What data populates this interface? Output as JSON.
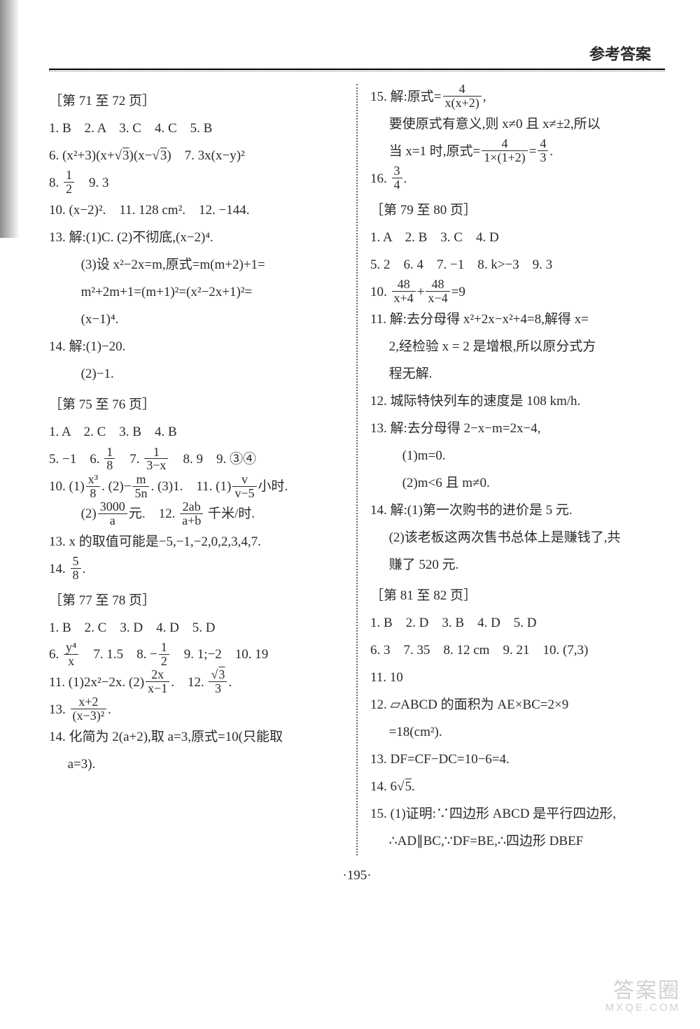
{
  "header": {
    "title": "参考答案"
  },
  "page_number": "·195·",
  "watermark": {
    "line1": "答案圈",
    "line2": "MXQE.COM"
  },
  "left": {
    "sec1_head": "［第 71 至 72 页］",
    "s1_l1": "1. B　2. A　3. C　4. C　5. B",
    "s1_l2a": "6. (x²+3)(x+",
    "s1_l2b": ")(x−",
    "s1_l2c": ")　7. 3x(x−y)²",
    "s1_l3a": "8. ",
    "s1_l3b": "　9. 3",
    "s1_l4": "10. (x−2)².　11. 128 cm².　12. −144.",
    "s1_l5": "13. 解:(1)C. (2)不彻底,(x−2)⁴.",
    "s1_l6": "(3)设 x²−2x=m,原式=m(m+2)+1=",
    "s1_l7": "m²+2m+1=(m+1)²=(x²−2x+1)²=",
    "s1_l8": "(x−1)⁴.",
    "s1_l9": "14. 解:(1)−20.",
    "s1_l10": "(2)−1.",
    "sec2_head": "［第 75 至 76 页］",
    "s2_l1": "1. A　2. C　3. B　4. B",
    "s2_l2a": "5. −1　6. ",
    "s2_l2b": "　7. ",
    "s2_l2c": "　8. 9　9. ③④",
    "s2_l3a": "10. (1)",
    "s2_l3b": ". (2)−",
    "s2_l3c": ". (3)1.　11. (1)",
    "s2_l3d": "小时.",
    "s2_l4a": "(2)",
    "s2_l4b": "元.　12. ",
    "s2_l4c": " 千米/时.",
    "s2_l5": "13. x 的取值可能是−5,−1,−2,0,2,3,4,7.",
    "s2_l6a": "14. ",
    "s2_l6b": ".",
    "sec3_head": "［第 77 至 78 页］",
    "s3_l1": "1. B　2. C　3. D　4. D　5. D",
    "s3_l2a": "6. ",
    "s3_l2b": "　7. 1.5　8. −",
    "s3_l2c": "　9. 1;−2　10. 19",
    "s3_l3a": "11. (1)2x²−2x. (2)",
    "s3_l3b": ".　12. ",
    "s3_l3c": ".",
    "s3_l4a": "13. ",
    "s3_l4b": ".",
    "s3_l5": "14. 化简为 2(a+2),取 a=3,原式=10(只能取",
    "s3_l6": "a=3).",
    "frac_1_2": {
      "n": "1",
      "d": "2"
    },
    "frac_1_8": {
      "n": "1",
      "d": "8"
    },
    "frac_1_3mx": {
      "n": "1",
      "d": "3−x"
    },
    "frac_x3_8": {
      "n": "x³",
      "d": "8"
    },
    "frac_m_5n": {
      "n": "m",
      "d": "5n"
    },
    "frac_v_vm5": {
      "n": "v",
      "d": "v−5"
    },
    "frac_3000_a": {
      "n": "3000",
      "d": "a"
    },
    "frac_2ab_apb": {
      "n": "2ab",
      "d": "a+b"
    },
    "frac_5_8": {
      "n": "5",
      "d": "8"
    },
    "frac_y4_x": {
      "n": "y⁴",
      "d": "x"
    },
    "frac_2x_xm1": {
      "n": "2x",
      "d": "x−1"
    },
    "frac_s3_3": {
      "n_pre": "",
      "n_root": "3",
      "d": "3"
    },
    "frac_xp2_xm3sq": {
      "n": "x+2",
      "d": "(x−3)²"
    },
    "sqrt3": "3"
  },
  "right": {
    "r1a": "15. 解:原式=",
    "r1b": ",",
    "r2": "要使原式有意义,则 x≠0 且 x≠±2,所以",
    "r3a": "当 x=1 时,原式=",
    "r3b": "=",
    "r3c": ".",
    "r4a": "16. ",
    "r4b": ".",
    "sec4_head": "［第 79 至 80 页］",
    "s4_l1": "1. A　2. B　3. C　4. D",
    "s4_l2": "5. 2　6. 4　7. −1　8. k>−3　9. 3",
    "s4_l3a": "10. ",
    "s4_l3b": "+",
    "s4_l3c": "=9",
    "s4_l4": "11. 解:去分母得 x²+2x−x²+4=8,解得 x=",
    "s4_l5": "2,经检验 x = 2 是增根,所以原分式方",
    "s4_l6": "程无解.",
    "s4_l7": "12. 城际特快列车的速度是 108 km/h.",
    "s4_l8": "13. 解:去分母得 2−x−m=2x−4,",
    "s4_l9": "(1)m=0.",
    "s4_l10": "(2)m<6 且 m≠0.",
    "s4_l11": "14. 解:(1)第一次购书的进价是 5 元.",
    "s4_l12": "(2)该老板这两次售书总体上是赚钱了,共",
    "s4_l13": "赚了 520 元.",
    "sec5_head": "［第 81 至 82 页］",
    "s5_l1": "1. B　2. D　3. B　4. D　5. D",
    "s5_l2": "6. 3　7. 35　8. 12 cm　9. 21　10. (7,3)",
    "s5_l3": "11. 10",
    "s5_l4": "12. ▱ABCD 的面积为 AE×BC=2×9",
    "s5_l5": "=18(cm²).",
    "s5_l6": "13. DF=CF−DC=10−6=4.",
    "s5_l7a": "14. 6",
    "s5_l7b": ".",
    "s5_l8": "15. (1)证明:∵四边形 ABCD 是平行四边形,",
    "s5_l9": "∴AD∥BC,∵DF=BE,∴四边形 DBEF",
    "frac_4_xx2": {
      "n": "4",
      "d": "x(x+2)"
    },
    "frac_4_1x12": {
      "n": "4",
      "d": "1×(1+2)"
    },
    "frac_4_3": {
      "n": "4",
      "d": "3"
    },
    "frac_3_4": {
      "n": "3",
      "d": "4"
    },
    "frac_48_xp4": {
      "n": "48",
      "d": "x+4"
    },
    "frac_48_xm4": {
      "n": "48",
      "d": "x−4"
    },
    "sqrt5": "5"
  }
}
